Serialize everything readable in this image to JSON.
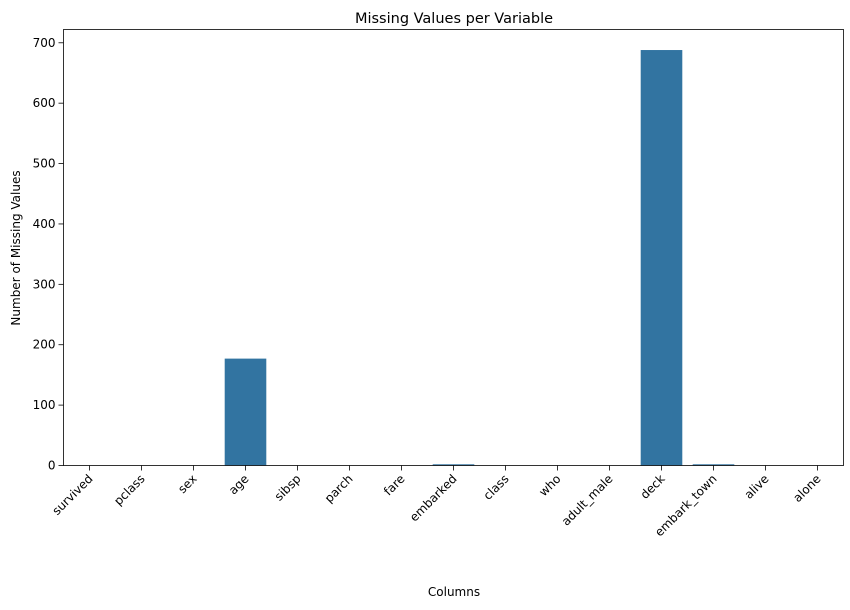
{
  "chart_data": {
    "type": "bar",
    "title": "Missing Values per Variable",
    "xlabel": "Columns",
    "ylabel": "Number of Missing Values",
    "categories": [
      "survived",
      "pclass",
      "sex",
      "age",
      "sibsp",
      "parch",
      "fare",
      "embarked",
      "class",
      "who",
      "adult_male",
      "deck",
      "embark_town",
      "alive",
      "alone"
    ],
    "values": [
      0,
      0,
      0,
      177,
      0,
      0,
      0,
      2,
      0,
      0,
      0,
      688,
      2,
      0,
      0
    ],
    "yticks": [
      0,
      100,
      200,
      300,
      400,
      500,
      600,
      700
    ],
    "ylim": [
      0,
      722
    ],
    "bar_color": "#3274a1",
    "grid": false,
    "legend": "none"
  }
}
